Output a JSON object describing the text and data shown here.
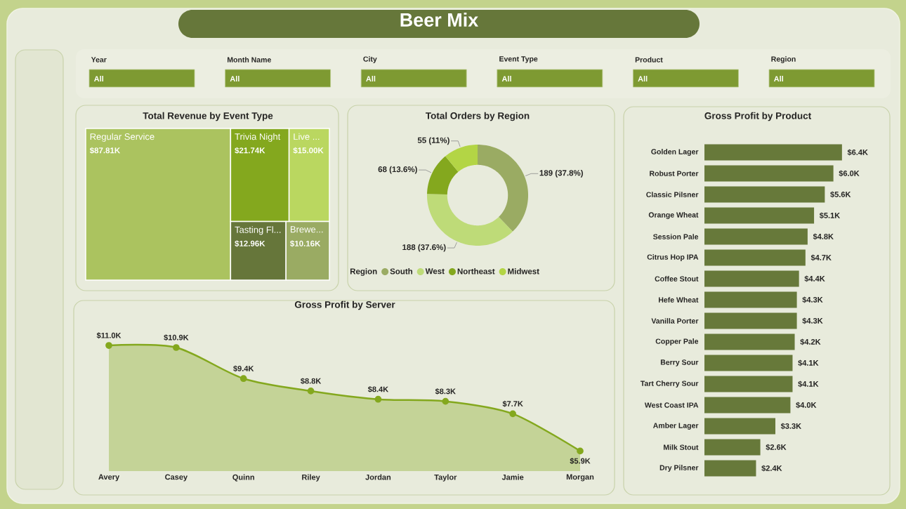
{
  "chart_data": [
    {
      "type": "other",
      "title": "Beer Mix",
      "categories": [
        "Year",
        "Month Name",
        "City",
        "Event Type",
        "Product",
        "Region"
      ],
      "annotations": [
        "All",
        "All",
        "All",
        "All",
        "All",
        "All"
      ]
    },
    {
      "type": "other",
      "title": "Total Revenue by Event Type",
      "categories": [
        "Regular Service",
        "Trivia Night",
        "Live ...",
        "Tasting Fl...",
        "Brewe..."
      ],
      "values": [
        87.81,
        21.74,
        15.0,
        12.96,
        10.16
      ],
      "value_labels": [
        "$87.81K",
        "$21.74K",
        "$15.00K",
        "$12.96K",
        "$10.16K"
      ],
      "colors": [
        "#ABC35F",
        "#84A81E",
        "#BAD760",
        "#66763A",
        "#9AAB63"
      ]
    },
    {
      "type": "donut",
      "title": "Total Orders by Region",
      "categories": [
        "South",
        "West",
        "Northeast",
        "Midwest"
      ],
      "values": [
        189,
        188,
        68,
        55
      ],
      "value_labels": [
        "189 (37.8%)",
        "188 (37.6%)",
        "68 (13.6%)",
        "55 (11%)"
      ],
      "colors": [
        "#9AAB63",
        "#BEDB78",
        "#84A81E",
        "#B3D545"
      ],
      "legend": "bottom left",
      "legend_title": "Region"
    },
    {
      "type": "area",
      "title": "Gross Profit by Server",
      "categories": [
        "Avery",
        "Casey",
        "Quinn",
        "Riley",
        "Jordan",
        "Taylor",
        "Jamie",
        "Morgan"
      ],
      "values": [
        11.0,
        10.9,
        9.4,
        8.8,
        8.4,
        8.3,
        7.7,
        5.9
      ],
      "value_labels": [
        "$11.0K",
        "$10.9K",
        "$9.4K",
        "$8.8K",
        "$8.4K",
        "$8.3K",
        "$7.7K",
        "$5.9K"
      ],
      "color": "#84A81E",
      "marker": "circle",
      "tick_labels": "x"
    },
    {
      "type": "bar",
      "orientation": "horizontal",
      "title": "Gross Profit by Product",
      "categories": [
        "Golden Lager",
        "Robust Porter",
        "Classic Pilsner",
        "Orange Wheat",
        "Session Pale",
        "Citrus Hop IPA",
        "Coffee Stout",
        "Hefe Wheat",
        "Vanilla Porter",
        "Copper Pale",
        "Berry Sour",
        "Tart Cherry Sour",
        "West Coast IPA",
        "Amber Lager",
        "Milk Stout",
        "Dry Pilsner"
      ],
      "values": [
        6.4,
        6.0,
        5.6,
        5.1,
        4.8,
        4.7,
        4.4,
        4.3,
        4.3,
        4.2,
        4.1,
        4.1,
        4.0,
        3.3,
        2.6,
        2.4
      ],
      "value_labels": [
        "$6.4K",
        "$6.0K",
        "$5.6K",
        "$5.1K",
        "$4.8K",
        "$4.7K",
        "$4.4K",
        "$4.3K",
        "$4.3K",
        "$4.2K",
        "$4.1K",
        "$4.1K",
        "$4.0K",
        "$3.3K",
        "$2.6K",
        "$2.4K"
      ],
      "color": "#67793A",
      "tick_labels": "y"
    }
  ]
}
